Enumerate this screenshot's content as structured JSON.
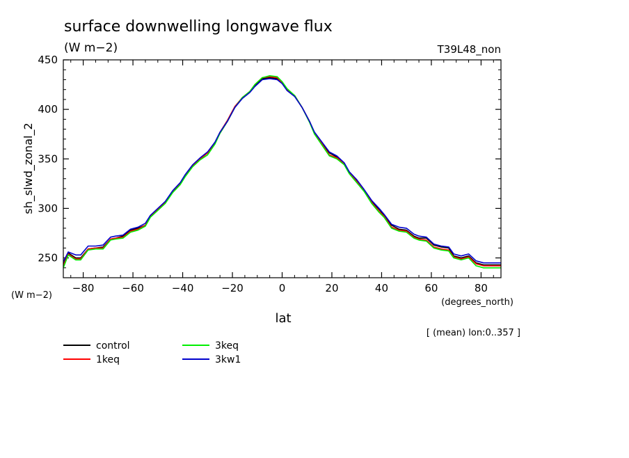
{
  "header": {
    "title": "surface downwelling longwave flux",
    "units": "(W m−2)",
    "run": "T39L48_non"
  },
  "footer": {
    "y_units": "(W m−2)",
    "x_units": "(degrees_north)",
    "averaging": "[ (mean) lon:0..357 ]"
  },
  "chart_data": {
    "type": "line",
    "title": "surface downwelling longwave flux",
    "xlabel": "lat",
    "ylabel": "sh_slwd_zonal_2",
    "xlim": [
      -88,
      88
    ],
    "ylim": [
      230,
      450
    ],
    "xticks": [
      -80,
      -60,
      -40,
      -20,
      0,
      20,
      40,
      60,
      80
    ],
    "yticks": [
      250,
      300,
      350,
      400,
      450
    ],
    "grid": false,
    "legend_position": "bottom-left, below plot",
    "x": [
      -88,
      -86,
      -83,
      -81,
      -78,
      -75,
      -72,
      -69,
      -67,
      -64,
      -61,
      -58,
      -55,
      -53,
      -50,
      -47,
      -44,
      -41,
      -39,
      -36,
      -33,
      -30,
      -27,
      -25,
      -22,
      -19,
      -16,
      -13,
      -11,
      -8,
      -5,
      -2,
      0,
      2,
      5,
      8,
      11,
      13,
      16,
      19,
      22,
      25,
      27,
      30,
      33,
      36,
      39,
      41,
      44,
      47,
      50,
      53,
      55,
      58,
      61,
      64,
      67,
      69,
      72,
      75,
      78,
      81,
      83,
      86,
      88
    ],
    "series": [
      {
        "name": "control",
        "color": "#000000",
        "values": [
          243,
          255,
          250,
          250,
          259,
          260,
          261,
          269,
          270,
          272,
          278,
          280,
          283,
          292,
          299,
          306,
          317,
          325,
          333,
          343,
          350,
          356,
          366,
          376,
          388,
          402,
          412,
          418,
          424,
          431,
          432,
          431,
          427,
          420,
          414,
          402,
          388,
          376,
          366,
          356,
          352,
          345,
          336,
          328,
          318,
          307,
          299,
          293,
          283,
          279,
          278,
          272,
          270,
          270,
          263,
          261,
          260,
          252,
          250,
          252,
          245,
          243,
          243,
          243,
          243
        ]
      },
      {
        "name": "1keq",
        "color": "#ff0000",
        "values": [
          242,
          254,
          249,
          249,
          259,
          260,
          260,
          269,
          270,
          271,
          277,
          279,
          283,
          292,
          299,
          306,
          317,
          325,
          333,
          343,
          350,
          356,
          366,
          377,
          389,
          403,
          412,
          418,
          425,
          432,
          433,
          432,
          427,
          420,
          414,
          402,
          388,
          376,
          365,
          354,
          351,
          345,
          336,
          327,
          318,
          306,
          297,
          292,
          281,
          278,
          277,
          271,
          269,
          268,
          261,
          259,
          258,
          251,
          249,
          251,
          244,
          242,
          242,
          242,
          242
        ]
      },
      {
        "name": "3keq",
        "color": "#00ee00",
        "values": [
          240,
          253,
          248,
          248,
          258,
          259,
          259,
          268,
          269,
          270,
          276,
          278,
          282,
          291,
          298,
          305,
          316,
          324,
          332,
          342,
          349,
          354,
          365,
          376,
          388,
          402,
          412,
          418,
          425,
          432,
          434,
          433,
          428,
          421,
          414,
          402,
          387,
          375,
          364,
          353,
          350,
          344,
          335,
          326,
          317,
          305,
          296,
          291,
          280,
          277,
          276,
          270,
          268,
          267,
          260,
          258,
          257,
          250,
          248,
          250,
          242,
          240,
          240,
          240,
          240
        ]
      },
      {
        "name": "3kw1",
        "color": "#0000cc",
        "values": [
          246,
          256,
          253,
          253,
          262,
          262,
          263,
          271,
          272,
          273,
          279,
          281,
          285,
          293,
          300,
          307,
          318,
          326,
          334,
          344,
          351,
          357,
          367,
          377,
          388,
          402,
          411,
          417,
          423,
          430,
          431,
          430,
          426,
          419,
          413,
          402,
          388,
          377,
          367,
          357,
          353,
          346,
          337,
          329,
          319,
          308,
          300,
          294,
          284,
          281,
          280,
          274,
          272,
          271,
          264,
          262,
          261,
          254,
          252,
          254,
          247,
          245,
          245,
          245,
          245
        ]
      }
    ]
  }
}
